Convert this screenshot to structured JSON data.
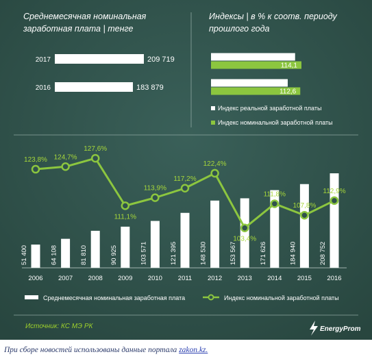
{
  "colors": {
    "panel_bg": "#30524c",
    "panel_bg_dark": "#27443f",
    "white_series": "#ffffff",
    "green_series": "#8cc63f",
    "green_text": "#a6d63a"
  },
  "top_left": {
    "title_line1": "Среднемесячная номинальная",
    "title_line2": "заработная плата | тенге"
  },
  "top_right": {
    "title_line1": "Индексы | в % к соотв. периоду",
    "title_line2": "прошлого года",
    "legend_real": "Индекс реальной заработной платы",
    "legend_nominal": "Индекс номинальной заработной платы"
  },
  "bottom": {
    "legend_bar": "Среднемесячная номинальная заработная плата",
    "legend_line": "Индекс номинальной заработной платы"
  },
  "footer": {
    "source": "Источник: КС МЭ РК",
    "logo_text": "EnergyProm"
  },
  "caption": {
    "text": "При сборе новостей использованы данные портала ",
    "link": "zakon.kz."
  },
  "chart_data": [
    {
      "type": "bar",
      "orientation": "horizontal",
      "title": "Среднемесячная номинальная заработная плата | тенге",
      "categories": [
        "2017",
        "2016"
      ],
      "values": [
        209719,
        183879
      ],
      "labels": [
        "209 719",
        "183 879"
      ],
      "xlim": [
        0,
        209719
      ]
    },
    {
      "type": "bar",
      "orientation": "horizontal",
      "title": "Индексы | в % к соотв. периоду прошлого года",
      "categories": [
        "2017",
        "2016"
      ],
      "series": [
        {
          "name": "Индекс реальной заработной платы",
          "values": [
            106.1,
            96.8
          ],
          "labels": [
            "106,1",
            "96,8"
          ]
        },
        {
          "name": "Индекс номинальной заработной платы",
          "values": [
            114.1,
            112.6
          ],
          "labels": [
            "114,1",
            "112,6"
          ]
        }
      ]
    },
    {
      "type": "bar",
      "categories": [
        "2006",
        "2007",
        "2008",
        "2009",
        "2010",
        "2011",
        "2012",
        "2013",
        "2014",
        "2015",
        "2016"
      ],
      "series": [
        {
          "name": "Среднемесячная номинальная заработная плата",
          "type": "bar",
          "values": [
            51400,
            64108,
            81810,
            90925,
            103571,
            121395,
            148530,
            153567,
            171626,
            184940,
            208752
          ],
          "labels": [
            "51 400",
            "64 108",
            "81 810",
            "90 925",
            "103 571",
            "121 395",
            "148 530",
            "153 567",
            "171 626",
            "184 940",
            "208 752"
          ]
        },
        {
          "name": "Индекс номинальной заработной платы",
          "type": "line",
          "values": [
            123.8,
            124.7,
            127.6,
            111.1,
            113.9,
            117.2,
            122.4,
            103.4,
            111.8,
            107.8,
            112.9
          ],
          "labels": [
            "123,8%",
            "124,7%",
            "127,6%",
            "111,1%",
            "113,9%",
            "117,2%",
            "122,4%",
            "103,4%",
            "111,8%",
            "107,8%",
            "112,9%"
          ]
        }
      ]
    }
  ]
}
